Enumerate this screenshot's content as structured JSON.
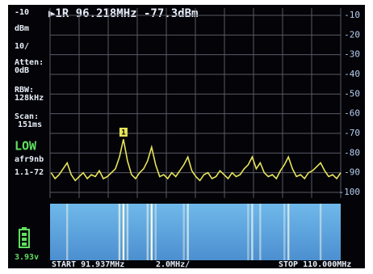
{
  "screen": {
    "header": "▶1R 96.218MHz -77.3dBm",
    "ref_level": "-10",
    "unit": "dBm",
    "scale": "10/",
    "atten_label": "Atten:",
    "atten_value": "0dB",
    "rbw_label": "RBW:",
    "rbw_value": "128kHz",
    "scan_label": "Scan:",
    "scan_value": "151ms",
    "mode": "LOW",
    "mode_info": "afr9nb",
    "mode_range": "1.1-72",
    "battery": "3.93v",
    "start": "START 91.937MHz",
    "step": "2.0MHz/",
    "stop": "STOP 110.000MHz"
  },
  "chart_data": {
    "type": "line",
    "color": "#e6e45a",
    "grid": true,
    "marker_label": "1",
    "marker_x": 96.5,
    "xlim": [
      91.937,
      110.0
    ],
    "ylim": [
      -100,
      -10
    ],
    "yticks": [
      -10,
      -20,
      -30,
      -40,
      -50,
      -60,
      -70,
      -80,
      -90,
      -100
    ],
    "x": [
      92.0,
      92.25,
      92.5,
      92.75,
      93.0,
      93.25,
      93.5,
      93.75,
      94.0,
      94.25,
      94.5,
      94.75,
      95.0,
      95.25,
      95.5,
      95.75,
      96.0,
      96.25,
      96.5,
      96.75,
      97.0,
      97.25,
      97.5,
      97.75,
      98.0,
      98.25,
      98.5,
      98.75,
      99.0,
      99.25,
      99.5,
      99.75,
      100.0,
      100.25,
      100.5,
      100.75,
      101.0,
      101.25,
      101.5,
      101.75,
      102.0,
      102.25,
      102.5,
      102.75,
      103.0,
      103.25,
      103.5,
      103.75,
      104.0,
      104.25,
      104.5,
      104.75,
      105.0,
      105.25,
      105.5,
      105.75,
      106.0,
      106.25,
      106.5,
      106.75,
      107.0,
      107.25,
      107.5,
      107.75,
      108.0,
      108.25,
      108.5,
      108.75,
      109.0,
      109.25,
      109.5,
      109.75,
      110.0
    ],
    "values": [
      -90,
      -93,
      -91,
      -88,
      -85,
      -91,
      -94,
      -92,
      -90,
      -93,
      -91,
      -92,
      -89,
      -93,
      -92,
      -90,
      -88,
      -82,
      -73,
      -84,
      -91,
      -93,
      -90,
      -88,
      -84,
      -77,
      -86,
      -92,
      -91,
      -93,
      -90,
      -92,
      -89,
      -86,
      -82,
      -89,
      -92,
      -94,
      -91,
      -90,
      -93,
      -92,
      -89,
      -91,
      -93,
      -90,
      -92,
      -91,
      -88,
      -86,
      -82,
      -88,
      -85,
      -90,
      -92,
      -91,
      -93,
      -89,
      -86,
      -82,
      -88,
      -92,
      -91,
      -93,
      -90,
      -89,
      -87,
      -85,
      -89,
      -92,
      -91,
      -93,
      -90
    ]
  }
}
